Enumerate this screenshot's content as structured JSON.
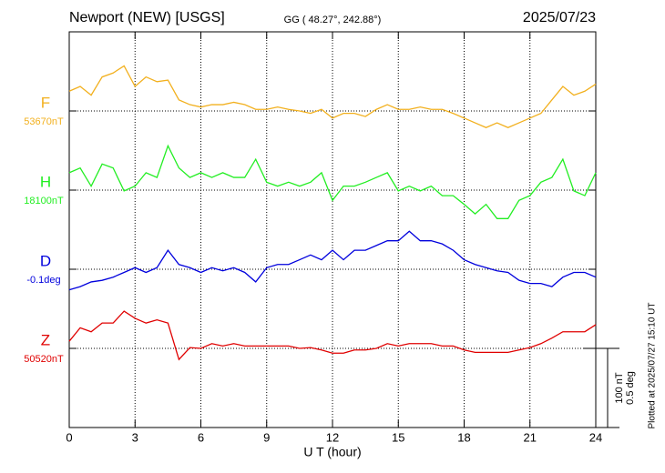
{
  "chart_data": {
    "type": "line",
    "title": "Newport (NEW)  [USGS]",
    "subtitle": "GG ( 48.27°, 242.88°)",
    "date": "2025/07/23",
    "x_label": "U T (hour)",
    "footnote": "Plotted at 2025/07/27 15:10 UT",
    "xlim": [
      0,
      24
    ],
    "xticks": [
      0,
      3,
      6,
      9,
      12,
      15,
      18,
      21,
      24
    ],
    "grid": true,
    "scale_bar": [
      {
        "value": 100,
        "label": "100 nT"
      },
      {
        "value": 0.5,
        "label": "0.5 deg"
      }
    ],
    "x": [
      0,
      0.5,
      1,
      1.5,
      2,
      2.5,
      3,
      3.5,
      4,
      4.5,
      5,
      5.5,
      6,
      6.5,
      7,
      7.5,
      8,
      8.5,
      9,
      9.5,
      10,
      10.5,
      11,
      11.5,
      12,
      12.5,
      13,
      13.5,
      14,
      14.5,
      15,
      15.5,
      16,
      16.5,
      17,
      17.5,
      18,
      18.5,
      19,
      19.5,
      20,
      20.5,
      21,
      21.5,
      22,
      22.5,
      23,
      23.5,
      24
    ],
    "series": [
      {
        "name": "F",
        "baseline": "53670nT",
        "color": "#f2b01e",
        "values": [
          25,
          31,
          20,
          43,
          48,
          57,
          31,
          43,
          37,
          39,
          14,
          8,
          5,
          8,
          8,
          11,
          8,
          2,
          2,
          5,
          2,
          0,
          -3,
          2,
          -9,
          -3,
          -3,
          -7,
          2,
          8,
          2,
          2,
          5,
          2,
          2,
          -3,
          -9,
          -15,
          -21,
          -15,
          -21,
          -15,
          -9,
          -3,
          14,
          31,
          20,
          25,
          34
        ]
      },
      {
        "name": "H",
        "baseline": "18100nT",
        "color": "#22ee22",
        "values": [
          22,
          28,
          5,
          33,
          28,
          -1,
          5,
          22,
          16,
          56,
          28,
          16,
          22,
          16,
          22,
          16,
          16,
          39,
          10,
          5,
          10,
          5,
          10,
          22,
          -13,
          5,
          5,
          10,
          16,
          22,
          -1,
          5,
          -1,
          5,
          -7,
          -7,
          -18,
          -30,
          -18,
          -36,
          -36,
          -13,
          -7,
          10,
          16,
          39,
          -1,
          -7,
          22
        ]
      },
      {
        "name": "D",
        "baseline": "-0.1deg",
        "color": "#0000dd",
        "values": [
          -0.13,
          -0.11,
          -0.08,
          -0.07,
          -0.05,
          -0.02,
          0.01,
          -0.02,
          0.01,
          0.12,
          0.03,
          0.01,
          -0.02,
          0.01,
          -0.01,
          0.01,
          -0.02,
          -0.08,
          0.01,
          0.03,
          0.03,
          0.06,
          0.09,
          0.06,
          0.12,
          0.06,
          0.12,
          0.12,
          0.15,
          0.18,
          0.18,
          0.24,
          0.18,
          0.18,
          0.16,
          0.12,
          0.06,
          0.03,
          0.01,
          -0.01,
          -0.02,
          -0.07,
          -0.09,
          -0.09,
          -0.11,
          -0.05,
          -0.02,
          -0.02,
          -0.05
        ]
      },
      {
        "name": "Z",
        "baseline": "50520nT",
        "color": "#e00000",
        "values": [
          9,
          26,
          21,
          32,
          32,
          47,
          38,
          32,
          36,
          32,
          -14,
          1,
          0,
          6,
          3,
          6,
          3,
          3,
          3,
          3,
          3,
          0,
          1,
          -2,
          -6,
          -6,
          -2,
          -2,
          0,
          6,
          3,
          6,
          6,
          6,
          3,
          3,
          -2,
          -5,
          -5,
          -5,
          -5,
          -2,
          1,
          6,
          13,
          21,
          21,
          21,
          30
        ]
      }
    ]
  }
}
